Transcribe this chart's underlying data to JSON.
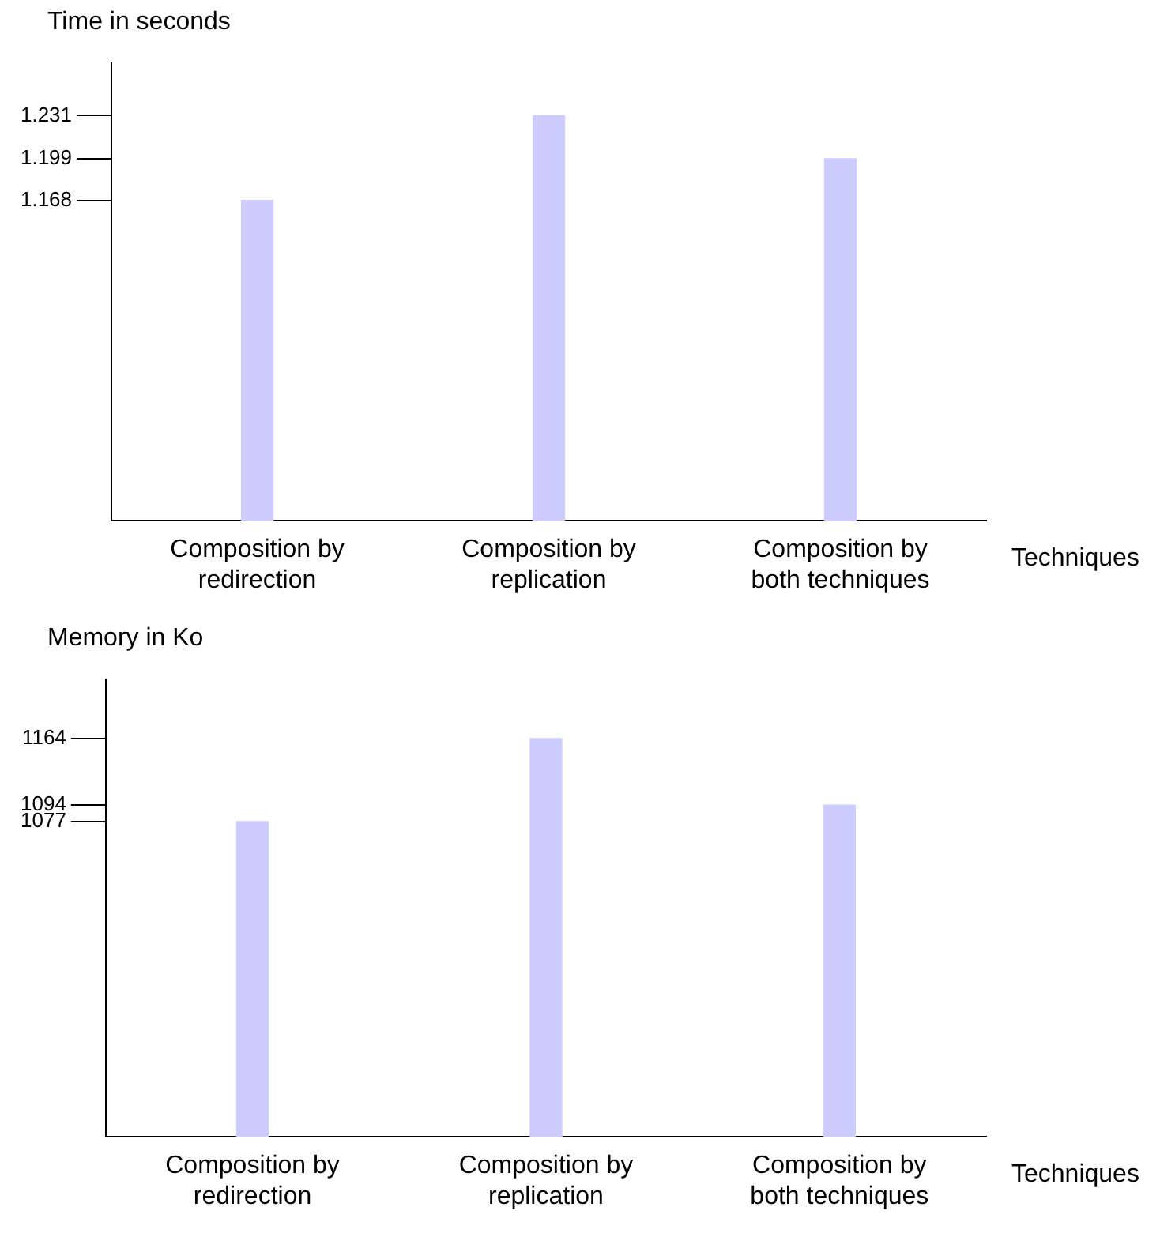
{
  "chart_data": [
    {
      "type": "bar",
      "ylabel": "Time in seconds",
      "xlabel": "Techniques",
      "categories": [
        "Composition by redirection",
        "Composition by replication",
        "Composition by both techniques"
      ],
      "values": [
        1.168,
        1.231,
        1.199
      ],
      "color": "#ccccff",
      "ylim": [
        0.93,
        1.27
      ],
      "yticks": [
        1.168,
        1.199,
        1.231
      ]
    },
    {
      "type": "bar",
      "ylabel": "Memory in Ko",
      "xlabel": "Techniques",
      "categories": [
        "Composition by redirection",
        "Composition by replication",
        "Composition by both techniques"
      ],
      "values": [
        1077,
        1164,
        1094
      ],
      "color": "#ccccff",
      "ylim": [
        746,
        1226
      ],
      "yticks": [
        1077,
        1094,
        1164
      ]
    }
  ]
}
